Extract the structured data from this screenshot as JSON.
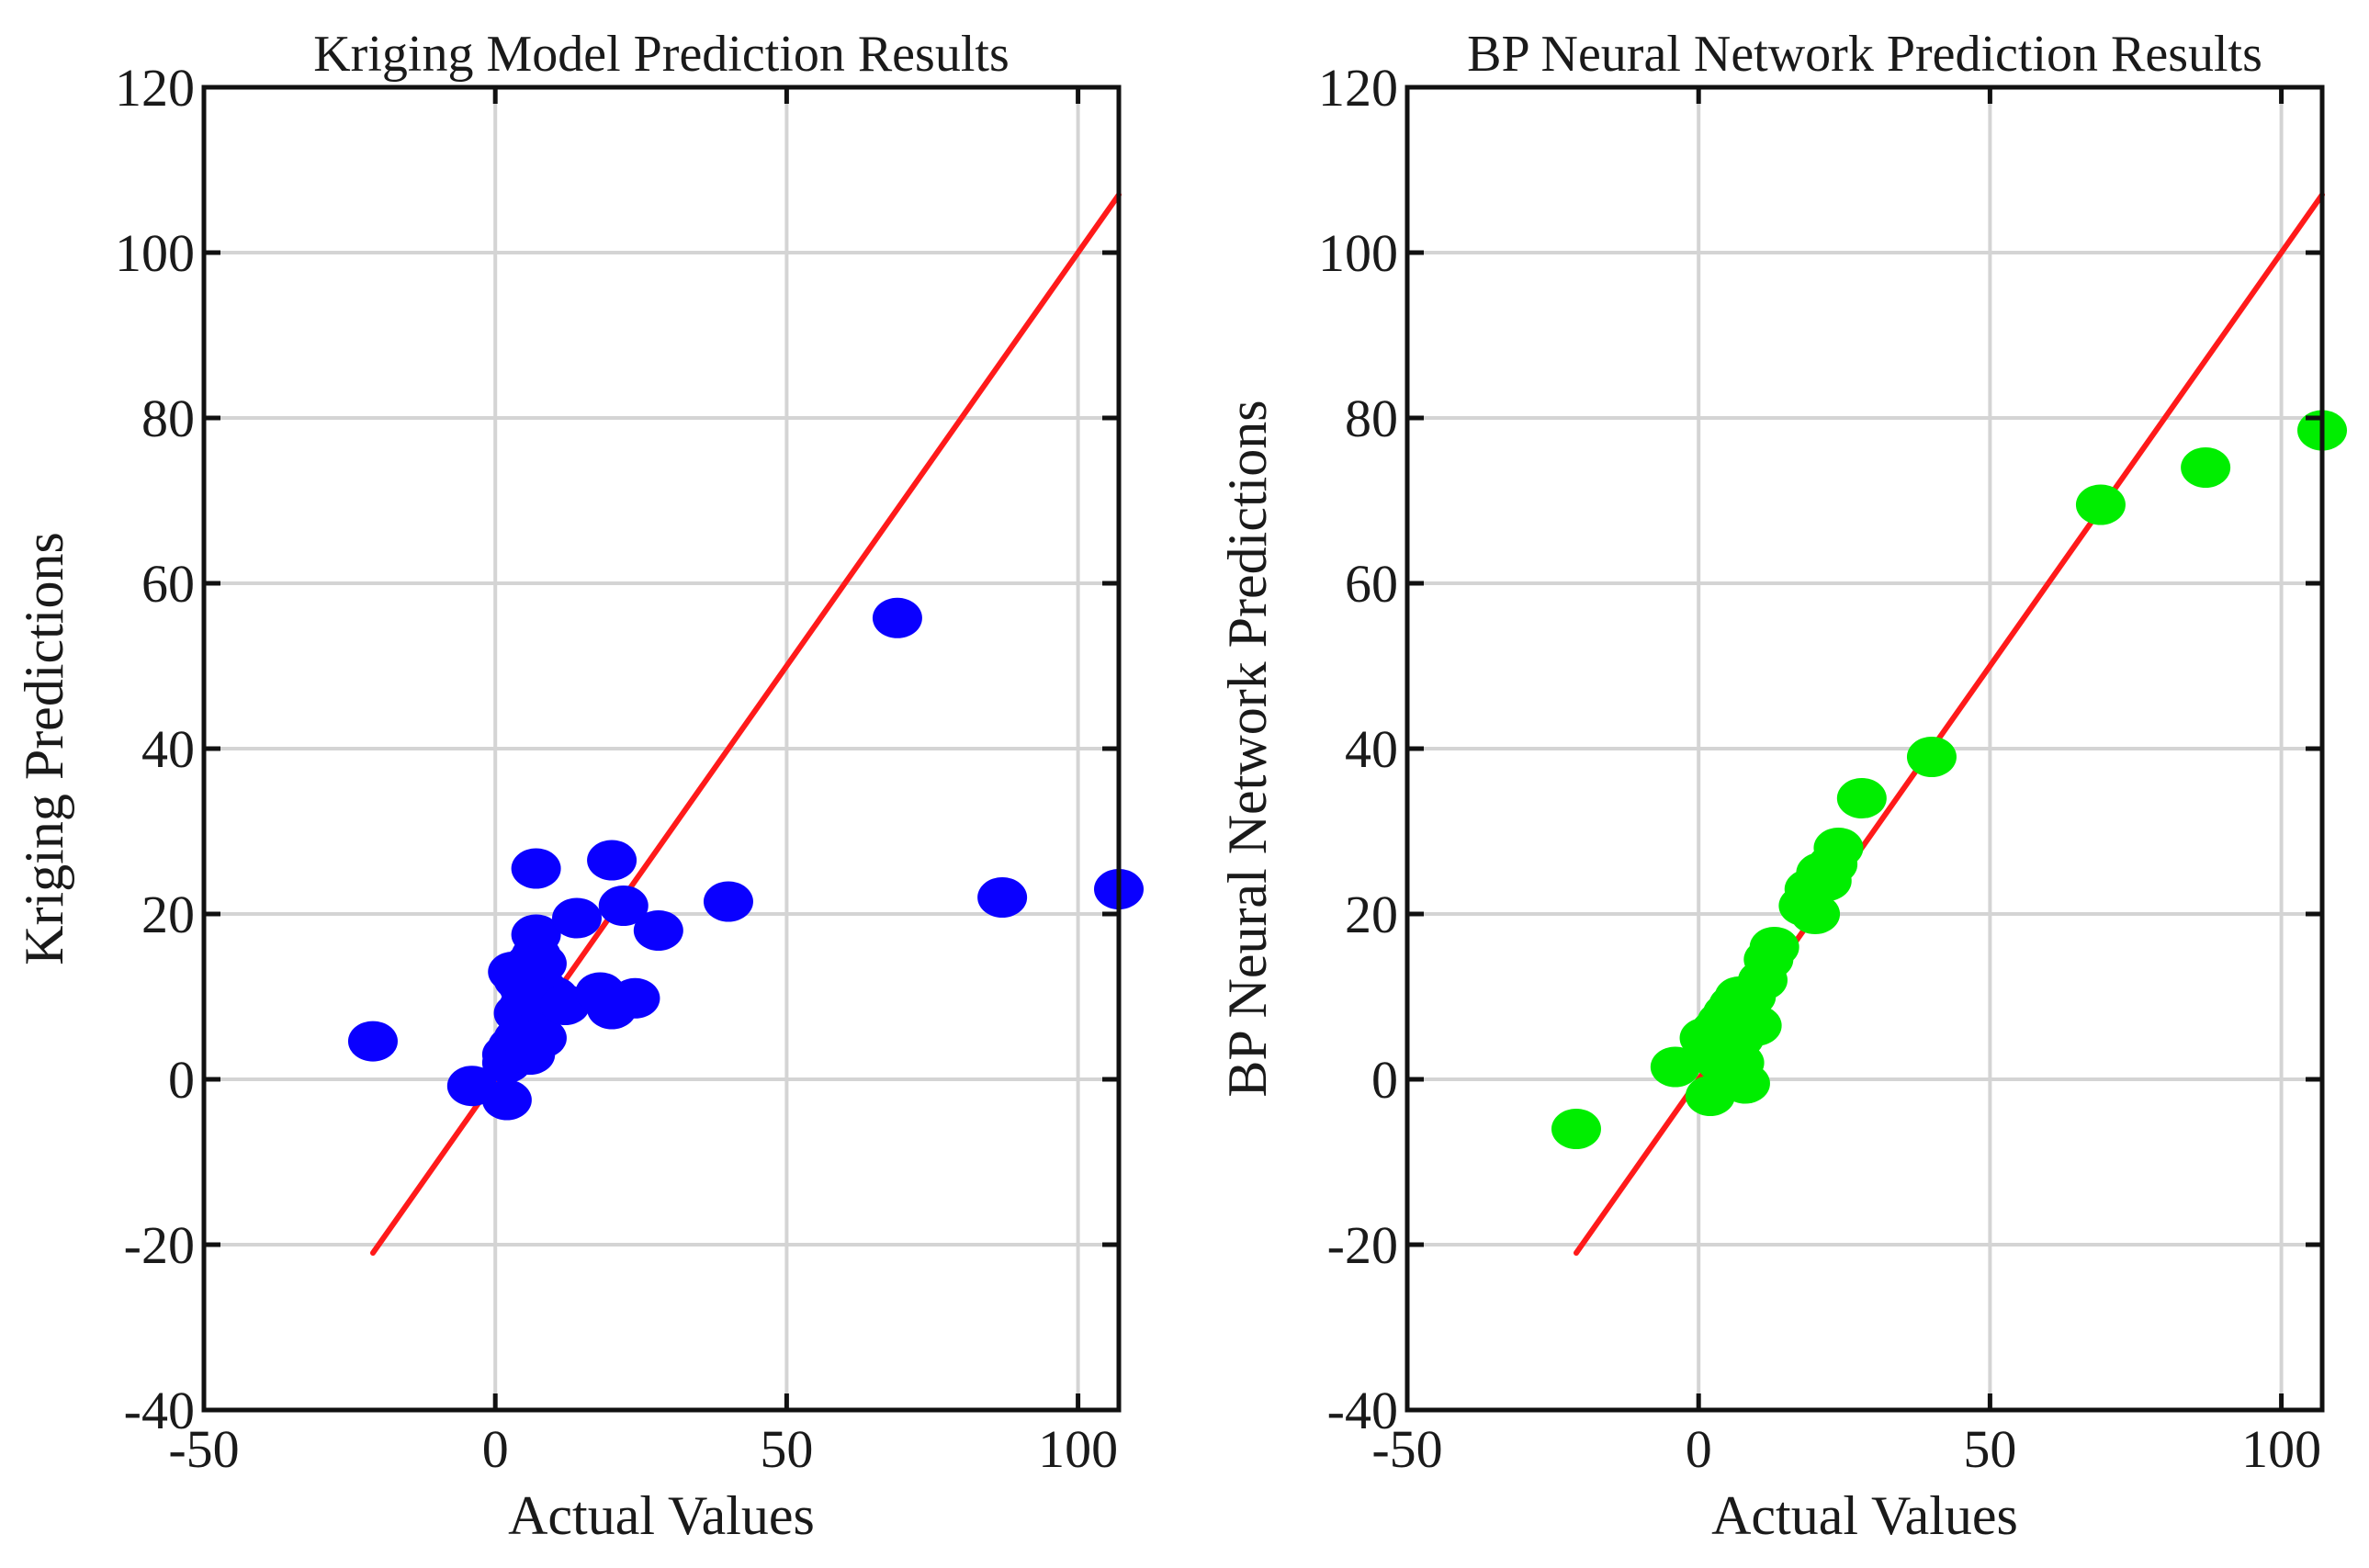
{
  "chart_data": [
    {
      "type": "scatter",
      "title": "Kriging Model Prediction Results",
      "xlabel": "Actual Values",
      "ylabel": "Kriging Predictions",
      "xlim": [
        -50,
        107
      ],
      "ylim": [
        -40,
        120
      ],
      "xticks": [
        -50,
        0,
        50,
        100
      ],
      "yticks": [
        -40,
        -20,
        0,
        20,
        40,
        60,
        80,
        100,
        120
      ],
      "grid": true,
      "point_color": "#0a00ff",
      "line_color": "#ff1a1a",
      "reference_line": {
        "x": [
          -21,
          107
        ],
        "y": [
          -21,
          107
        ]
      },
      "series": [
        {
          "name": "Kriging",
          "x": [
            -21,
            -4,
            2,
            2,
            2,
            3,
            3,
            4,
            4,
            4,
            5,
            5,
            5,
            5,
            6,
            6,
            6,
            6,
            7,
            7,
            7,
            7,
            8,
            8,
            8,
            9,
            10,
            12,
            14,
            18,
            20,
            20,
            22,
            24,
            28,
            40,
            69,
            87,
            107
          ],
          "y": [
            4.6,
            -0.8,
            -2.5,
            2,
            3,
            4,
            13,
            5,
            8,
            12,
            6,
            7,
            9,
            11,
            3,
            4,
            10,
            14,
            25.5,
            12,
            15,
            17.5,
            5,
            11,
            14,
            9,
            10,
            9,
            19.5,
            10.5,
            26.5,
            8.5,
            21,
            9.8,
            18,
            21.5,
            55.8,
            22,
            23
          ]
        }
      ]
    },
    {
      "type": "scatter",
      "title": "BP Neural Network Prediction Results",
      "xlabel": "Actual Values",
      "ylabel": "BP Neural Network Predictions",
      "xlim": [
        -50,
        107
      ],
      "ylim": [
        -40,
        120
      ],
      "xticks": [
        -50,
        0,
        50,
        100
      ],
      "yticks": [
        -40,
        -20,
        0,
        20,
        40,
        60,
        80,
        100,
        120
      ],
      "grid": true,
      "point_color": "#00ee00",
      "line_color": "#ff1a1a",
      "reference_line": {
        "x": [
          -21,
          107
        ],
        "y": [
          -21,
          107
        ]
      },
      "series": [
        {
          "name": "BP Neural Network",
          "x": [
            -21,
            -4,
            1,
            2,
            2,
            3,
            3,
            4,
            4,
            5,
            5,
            5,
            6,
            6,
            6,
            7,
            7,
            7,
            8,
            8,
            8,
            9,
            9,
            10,
            11,
            12,
            13,
            18,
            19,
            20,
            21,
            22,
            23,
            24,
            28,
            40,
            69,
            87,
            107
          ],
          "y": [
            -6,
            1.5,
            5,
            -2,
            3,
            4,
            6,
            2,
            7,
            3,
            8,
            5,
            6,
            4,
            9,
            10,
            2,
            5,
            8,
            -0.5,
            6,
            7,
            10,
            6.5,
            12,
            14.5,
            16,
            21,
            23,
            20,
            25,
            24,
            26,
            28,
            34,
            39,
            69.5,
            74,
            78.5
          ]
        }
      ]
    }
  ]
}
